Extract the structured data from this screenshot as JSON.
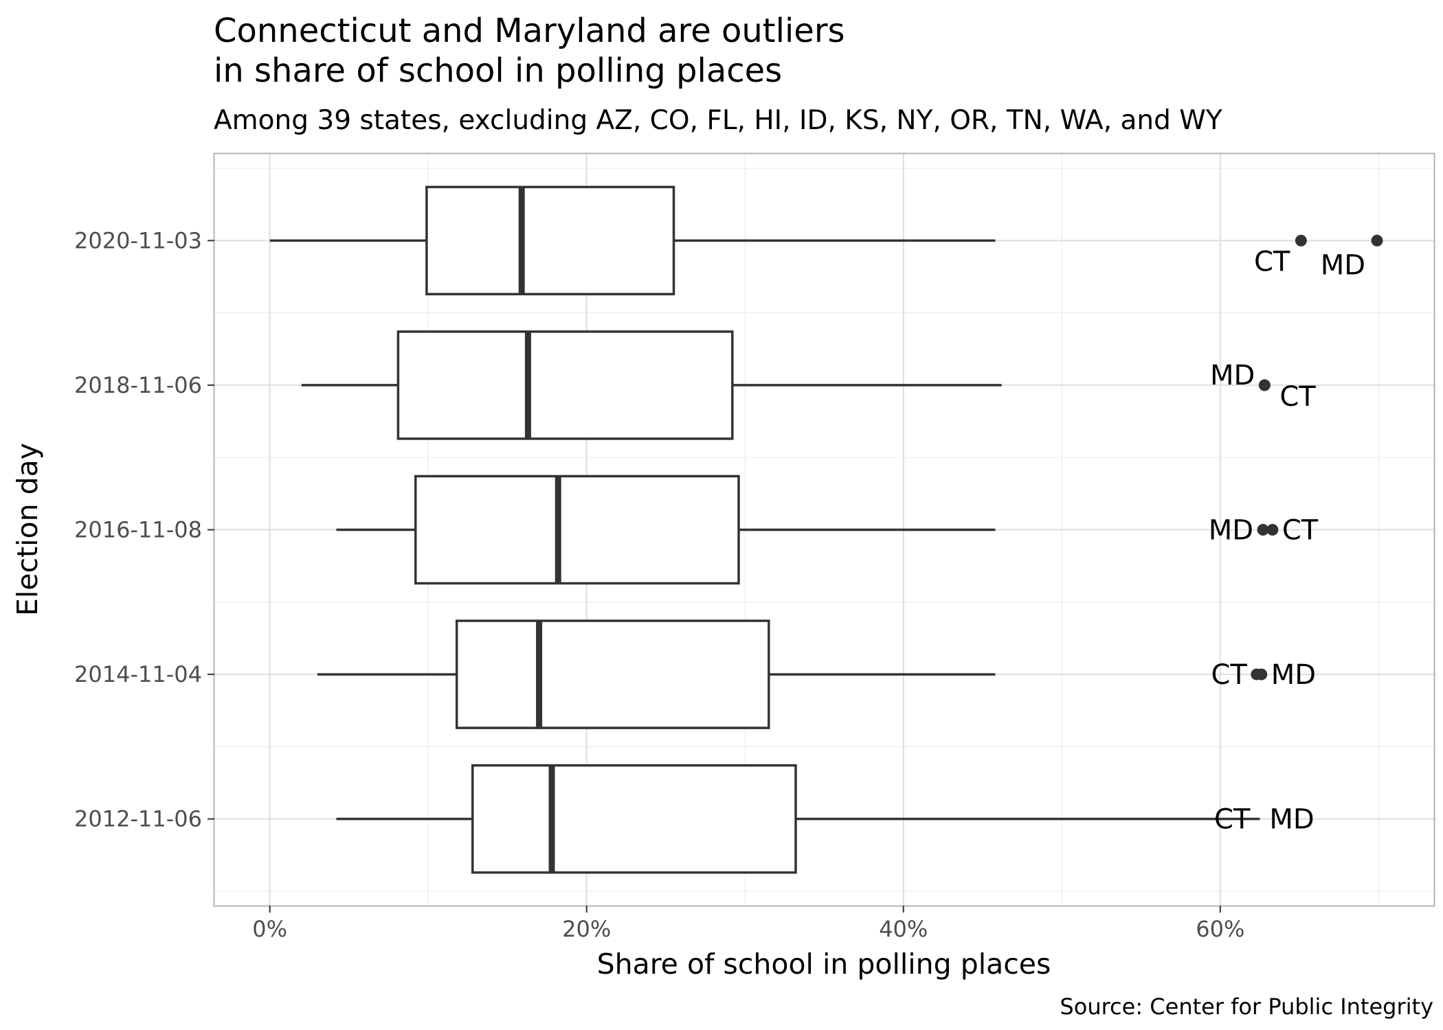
{
  "chart_data": {
    "type": "boxplot",
    "orientation": "horizontal",
    "title_lines": [
      "Connecticut and Maryland are outliers",
      "in share of school in polling places"
    ],
    "subtitle": "Among 39 states, excluding AZ, CO, FL, HI, ID, KS, NY, OR, TN, WA, and WY",
    "xlabel": "Share of school in polling places",
    "ylabel": "Election day",
    "caption": "Source: Center for Public Integrity",
    "xlim": [
      -3.5,
      73.5
    ],
    "x_ticks": [
      0,
      20,
      40,
      60
    ],
    "x_tick_labels": [
      "0%",
      "20%",
      "40%",
      "60%"
    ],
    "categories": [
      "2012-11-06",
      "2014-11-04",
      "2016-11-08",
      "2018-11-06",
      "2020-11-03"
    ],
    "boxes": [
      {
        "category": "2012-11-06",
        "whisker_low": 4.2,
        "q1": 12.8,
        "median": 17.8,
        "q3": 33.2,
        "whisker_high": 62.5,
        "outliers": [],
        "labels": [
          {
            "text": "CT",
            "x": 62.5,
            "side": "left"
          },
          {
            "text": "MD",
            "x": 62.5,
            "side": "right"
          }
        ]
      },
      {
        "category": "2014-11-04",
        "whisker_low": 3.0,
        "q1": 11.8,
        "median": 17.0,
        "q3": 31.5,
        "whisker_high": 45.8,
        "outliers": [
          {
            "label": "CT",
            "x": 62.3
          },
          {
            "label": "MD",
            "x": 62.6
          }
        ],
        "labels": [
          {
            "text": "CT",
            "x": 62.3,
            "side": "left"
          },
          {
            "text": "MD",
            "x": 62.6,
            "side": "right"
          }
        ]
      },
      {
        "category": "2016-11-08",
        "whisker_low": 4.2,
        "q1": 9.2,
        "median": 18.2,
        "q3": 29.6,
        "whisker_high": 45.8,
        "outliers": [
          {
            "label": "MD",
            "x": 62.7
          },
          {
            "label": "CT",
            "x": 63.3
          }
        ],
        "labels": [
          {
            "text": "MD",
            "x": 62.7,
            "side": "left"
          },
          {
            "text": "CT",
            "x": 63.3,
            "side": "right"
          }
        ]
      },
      {
        "category": "2018-11-06",
        "whisker_low": 2.0,
        "q1": 8.1,
        "median": 16.3,
        "q3": 29.2,
        "whisker_high": 46.2,
        "outliers": [
          {
            "label": "MD",
            "x": 62.8
          },
          {
            "label": "CT",
            "x": 62.8
          }
        ],
        "labels": [
          {
            "text": "MD",
            "x": 62.8,
            "side": "upper-left"
          },
          {
            "text": "CT",
            "x": 62.8,
            "side": "lower-right"
          }
        ]
      },
      {
        "category": "2020-11-03",
        "whisker_low": 0.0,
        "q1": 9.9,
        "median": 15.9,
        "q3": 25.5,
        "whisker_high": 45.8,
        "outliers": [
          {
            "label": "CT",
            "x": 65.1
          },
          {
            "label": "MD",
            "x": 69.9
          }
        ],
        "labels": [
          {
            "text": "CT",
            "x": 65.1,
            "side": "lower-left"
          },
          {
            "text": "MD",
            "x": 69.9,
            "side": "lower-left"
          }
        ]
      }
    ],
    "grid": true,
    "legend": "none",
    "colors": {
      "box_stroke": "#333333",
      "box_fill": "#ffffff",
      "grid": "#dedede",
      "panel_border": "#b3b3b3"
    }
  }
}
